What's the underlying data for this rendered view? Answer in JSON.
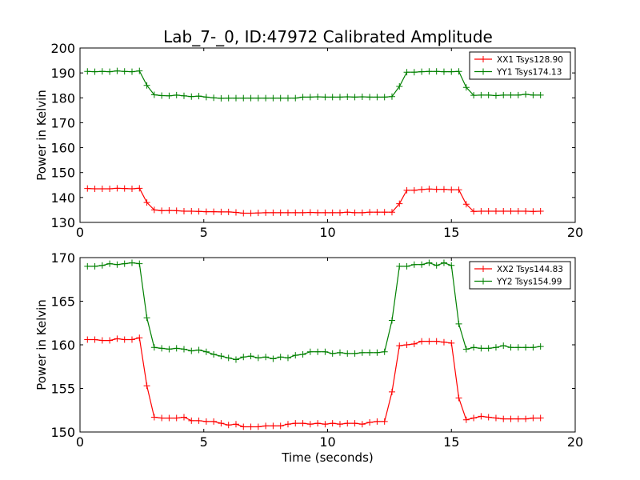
{
  "title": "Lab_7-_0, ID:47972 Calibrated Amplitude",
  "chart_data": [
    {
      "type": "line",
      "title": "Lab_7-_0, ID:47972 Calibrated Amplitude",
      "xlabel": "",
      "ylabel": "Power in Kelvin",
      "xlim": [
        0,
        20
      ],
      "ylim": [
        130,
        200
      ],
      "xticks": [
        "0",
        "5",
        "10",
        "15",
        "20"
      ],
      "yticks": [
        "130",
        "140",
        "150",
        "160",
        "170",
        "180",
        "190",
        "200"
      ],
      "grid": false,
      "legend_position": "top-right",
      "x": [
        0.3,
        0.6,
        0.9,
        1.2,
        1.5,
        1.8,
        2.1,
        2.4,
        2.7,
        3.0,
        3.3,
        3.6,
        3.9,
        4.2,
        4.5,
        4.8,
        5.1,
        5.4,
        5.7,
        6.0,
        6.3,
        6.6,
        6.9,
        7.2,
        7.5,
        7.8,
        8.1,
        8.4,
        8.7,
        9.0,
        9.3,
        9.6,
        9.9,
        10.2,
        10.5,
        10.8,
        11.1,
        11.4,
        11.7,
        12.0,
        12.3,
        12.6,
        12.9,
        13.2,
        13.5,
        13.8,
        14.1,
        14.4,
        14.7,
        15.0,
        15.3,
        15.6,
        15.9,
        16.2,
        16.5,
        16.8,
        17.1,
        17.4,
        17.7,
        18.0,
        18.3,
        18.6
      ],
      "series": [
        {
          "name": "XX1 Tsys128.90",
          "color": "#ff0000",
          "values": [
            143.6,
            143.5,
            143.5,
            143.5,
            143.7,
            143.6,
            143.5,
            143.7,
            138.0,
            135.0,
            134.7,
            134.8,
            134.7,
            134.5,
            134.5,
            134.4,
            134.3,
            134.3,
            134.2,
            134.2,
            134.0,
            133.7,
            133.7,
            133.8,
            133.9,
            133.9,
            133.9,
            133.9,
            133.9,
            133.9,
            134.0,
            133.9,
            133.9,
            133.9,
            133.9,
            134.1,
            133.9,
            133.9,
            134.1,
            134.1,
            134.1,
            134.1,
            137.5,
            142.9,
            142.9,
            143.2,
            143.4,
            143.3,
            143.3,
            143.1,
            143.1,
            137.3,
            134.4,
            134.5,
            134.5,
            134.5,
            134.5,
            134.5,
            134.5,
            134.5,
            134.4,
            134.5
          ]
        },
        {
          "name": "YY1 Tsys174.13",
          "color": "#008000",
          "values": [
            190.6,
            190.5,
            190.6,
            190.5,
            190.8,
            190.6,
            190.5,
            190.8,
            185.0,
            181.2,
            180.9,
            180.8,
            181.1,
            180.8,
            180.5,
            180.7,
            180.3,
            180.0,
            179.8,
            179.9,
            179.9,
            179.9,
            179.9,
            179.9,
            179.9,
            179.9,
            179.9,
            179.9,
            179.9,
            180.3,
            180.3,
            180.4,
            180.3,
            180.3,
            180.3,
            180.4,
            180.3,
            180.4,
            180.3,
            180.3,
            180.3,
            180.5,
            184.6,
            190.3,
            190.3,
            190.5,
            190.6,
            190.6,
            190.5,
            190.5,
            190.6,
            184.2,
            181.0,
            181.1,
            181.1,
            180.9,
            181.1,
            181.1,
            181.1,
            181.4,
            181.1,
            181.1
          ]
        }
      ]
    },
    {
      "type": "line",
      "title": "",
      "xlabel": "Time (seconds)",
      "ylabel": "Power in Kelvin",
      "xlim": [
        0,
        20
      ],
      "ylim": [
        150,
        170
      ],
      "xticks": [
        "0",
        "5",
        "10",
        "15",
        "20"
      ],
      "yticks": [
        "150",
        "155",
        "160",
        "165",
        "170"
      ],
      "grid": false,
      "legend_position": "top-right",
      "x": [
        0.3,
        0.6,
        0.9,
        1.2,
        1.5,
        1.8,
        2.1,
        2.4,
        2.7,
        3.0,
        3.3,
        3.6,
        3.9,
        4.2,
        4.5,
        4.8,
        5.1,
        5.4,
        5.7,
        6.0,
        6.3,
        6.6,
        6.9,
        7.2,
        7.5,
        7.8,
        8.1,
        8.4,
        8.7,
        9.0,
        9.3,
        9.6,
        9.9,
        10.2,
        10.5,
        10.8,
        11.1,
        11.4,
        11.7,
        12.0,
        12.3,
        12.6,
        12.9,
        13.2,
        13.5,
        13.8,
        14.1,
        14.4,
        14.7,
        15.0,
        15.3,
        15.6,
        15.9,
        16.2,
        16.5,
        16.8,
        17.1,
        17.4,
        17.7,
        18.0,
        18.3,
        18.6
      ],
      "series": [
        {
          "name": "XX2 Tsys144.83",
          "color": "#ff0000",
          "values": [
            160.6,
            160.6,
            160.5,
            160.5,
            160.7,
            160.6,
            160.6,
            160.8,
            155.3,
            151.7,
            151.6,
            151.6,
            151.6,
            151.7,
            151.3,
            151.3,
            151.2,
            151.2,
            151.0,
            150.8,
            150.9,
            150.6,
            150.6,
            150.6,
            150.7,
            150.7,
            150.7,
            150.9,
            151.0,
            151.0,
            150.9,
            151.0,
            150.9,
            151.0,
            150.9,
            151.0,
            151.0,
            150.9,
            151.1,
            151.2,
            151.2,
            154.6,
            159.9,
            160.0,
            160.1,
            160.4,
            160.4,
            160.4,
            160.3,
            160.2,
            153.9,
            151.4,
            151.6,
            151.8,
            151.7,
            151.6,
            151.5,
            151.5,
            151.5,
            151.5,
            151.6,
            151.6
          ]
        },
        {
          "name": "YY2 Tsys154.99",
          "color": "#008000",
          "values": [
            169.0,
            169.0,
            169.1,
            169.3,
            169.2,
            169.3,
            169.4,
            169.3,
            163.1,
            159.7,
            159.6,
            159.5,
            159.6,
            159.5,
            159.3,
            159.4,
            159.2,
            158.9,
            158.7,
            158.5,
            158.3,
            158.6,
            158.7,
            158.5,
            158.6,
            158.4,
            158.6,
            158.5,
            158.8,
            158.9,
            159.2,
            159.2,
            159.2,
            159.0,
            159.1,
            159.0,
            159.0,
            159.1,
            159.1,
            159.1,
            159.2,
            162.8,
            169.0,
            169.0,
            169.2,
            169.2,
            169.4,
            169.1,
            169.4,
            169.1,
            162.4,
            159.5,
            159.7,
            159.6,
            159.6,
            159.7,
            159.9,
            159.7,
            159.7,
            159.7,
            159.7,
            159.8
          ]
        }
      ]
    }
  ]
}
